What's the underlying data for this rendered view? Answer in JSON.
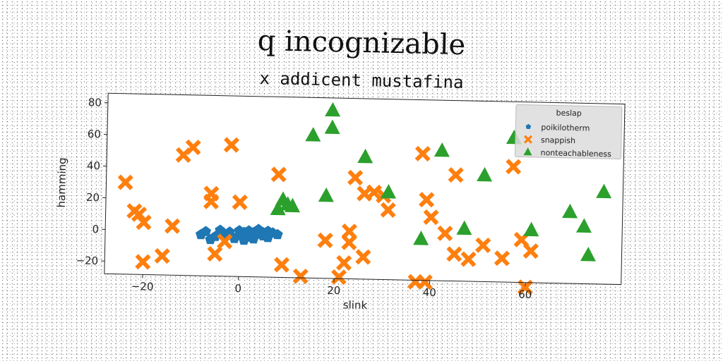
{
  "chart_data": {
    "type": "scatter",
    "title": "q incognizable",
    "subtitle": "x addicent mustafina",
    "xlabel": "slink",
    "ylabel": "hamming",
    "xlim": [
      -28,
      80
    ],
    "ylim": [
      -28,
      86
    ],
    "xticks": [
      -20,
      0,
      20,
      40,
      60
    ],
    "yticks": [
      -20,
      0,
      20,
      40,
      60,
      80
    ],
    "grid": false,
    "legend": {
      "title": "beslap",
      "placement": "top-right"
    },
    "series": [
      {
        "name": "poikilotherm",
        "marker": "pentagon",
        "color": "#1f77b4",
        "points": [
          [
            -8,
            -2
          ],
          [
            -7,
            0
          ],
          [
            -6,
            -5
          ],
          [
            -5,
            -3
          ],
          [
            -4,
            1
          ],
          [
            -3,
            -2
          ],
          [
            -2,
            0
          ],
          [
            -1,
            -4
          ],
          [
            0,
            1
          ],
          [
            0,
            -2
          ],
          [
            1,
            0
          ],
          [
            1,
            -5
          ],
          [
            2,
            -3
          ],
          [
            2,
            1
          ],
          [
            3,
            0
          ],
          [
            3,
            -4
          ],
          [
            4,
            -1
          ],
          [
            4,
            2
          ],
          [
            5,
            -2
          ],
          [
            5,
            0
          ],
          [
            6,
            1
          ],
          [
            6,
            -3
          ],
          [
            7,
            0
          ],
          [
            8,
            -1
          ]
        ]
      },
      {
        "name": "snappish",
        "marker": "x",
        "color": "#ff7f0e",
        "points": [
          [
            -24,
            30
          ],
          [
            -22,
            12
          ],
          [
            -21,
            10
          ],
          [
            -20,
            5
          ],
          [
            -20,
            -20
          ],
          [
            -16,
            -16
          ],
          [
            -14,
            3
          ],
          [
            -12,
            48
          ],
          [
            -10,
            53
          ],
          [
            -6,
            24
          ],
          [
            -6,
            19
          ],
          [
            -5,
            -14
          ],
          [
            -3,
            -6
          ],
          [
            -2,
            55
          ],
          [
            0,
            19
          ],
          [
            8,
            37
          ],
          [
            9,
            -20
          ],
          [
            13,
            -27
          ],
          [
            18,
            -4
          ],
          [
            21,
            -27
          ],
          [
            22,
            -18
          ],
          [
            23,
            2
          ],
          [
            23,
            -5
          ],
          [
            24,
            36
          ],
          [
            26,
            -14
          ],
          [
            26,
            26
          ],
          [
            28,
            27
          ],
          [
            30,
            25
          ],
          [
            31,
            16
          ],
          [
            38,
            52
          ],
          [
            37,
            -29
          ],
          [
            39,
            -29
          ],
          [
            39,
            23
          ],
          [
            40,
            12
          ],
          [
            43,
            2
          ],
          [
            45,
            39
          ],
          [
            45,
            -11
          ],
          [
            48,
            -14
          ],
          [
            51,
            -5
          ],
          [
            55,
            -13
          ],
          [
            57,
            45
          ],
          [
            59,
            -1
          ],
          [
            60,
            -31
          ],
          [
            61,
            -8
          ]
        ]
      },
      {
        "name": "nonteachableness",
        "marker": "triangle",
        "color": "#2ca02c",
        "points": [
          [
            8,
            15
          ],
          [
            9,
            21
          ],
          [
            10,
            18
          ],
          [
            11,
            17
          ],
          [
            15,
            62
          ],
          [
            18,
            24
          ],
          [
            19,
            78
          ],
          [
            19,
            67
          ],
          [
            26,
            49
          ],
          [
            31,
            27
          ],
          [
            38,
            -2
          ],
          [
            42,
            54
          ],
          [
            47,
            5
          ],
          [
            51,
            39
          ],
          [
            57,
            63
          ],
          [
            61,
            5
          ],
          [
            69,
            17
          ],
          [
            72,
            8
          ],
          [
            73,
            -10
          ],
          [
            76,
            30
          ]
        ]
      }
    ]
  }
}
